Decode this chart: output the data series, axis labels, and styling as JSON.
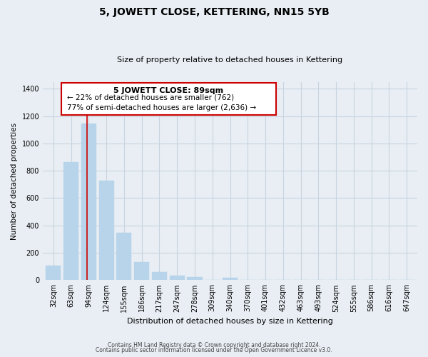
{
  "title": "5, JOWETT CLOSE, KETTERING, NN15 5YB",
  "subtitle": "Size of property relative to detached houses in Kettering",
  "xlabel": "Distribution of detached houses by size in Kettering",
  "ylabel": "Number of detached properties",
  "bar_labels": [
    "32sqm",
    "63sqm",
    "94sqm",
    "124sqm",
    "155sqm",
    "186sqm",
    "217sqm",
    "247sqm",
    "278sqm",
    "309sqm",
    "340sqm",
    "370sqm",
    "401sqm",
    "432sqm",
    "463sqm",
    "493sqm",
    "524sqm",
    "555sqm",
    "586sqm",
    "616sqm",
    "647sqm"
  ],
  "bar_values": [
    105,
    865,
    1145,
    730,
    345,
    130,
    60,
    35,
    20,
    0,
    15,
    0,
    0,
    0,
    0,
    0,
    0,
    0,
    0,
    0,
    0
  ],
  "bar_color": "#b8d4ea",
  "ylim": [
    0,
    1450
  ],
  "yticks": [
    0,
    200,
    400,
    600,
    800,
    1000,
    1200,
    1400
  ],
  "annotation_title": "5 JOWETT CLOSE: 89sqm",
  "annotation_line1": "← 22% of detached houses are smaller (762)",
  "annotation_line2": "77% of semi-detached houses are larger (2,636) →",
  "footer_line1": "Contains HM Land Registry data © Crown copyright and database right 2024.",
  "footer_line2": "Contains public sector information licensed under the Open Government Licence v3.0.",
  "background_color": "#e8eef4",
  "plot_bg_color": "#e8eef4",
  "grid_color": "#c8d4e0",
  "annotation_box_color": "#ffffff",
  "annotation_box_edge": "#cc0000",
  "red_line_color": "#cc0000",
  "red_line_x": 1.9
}
